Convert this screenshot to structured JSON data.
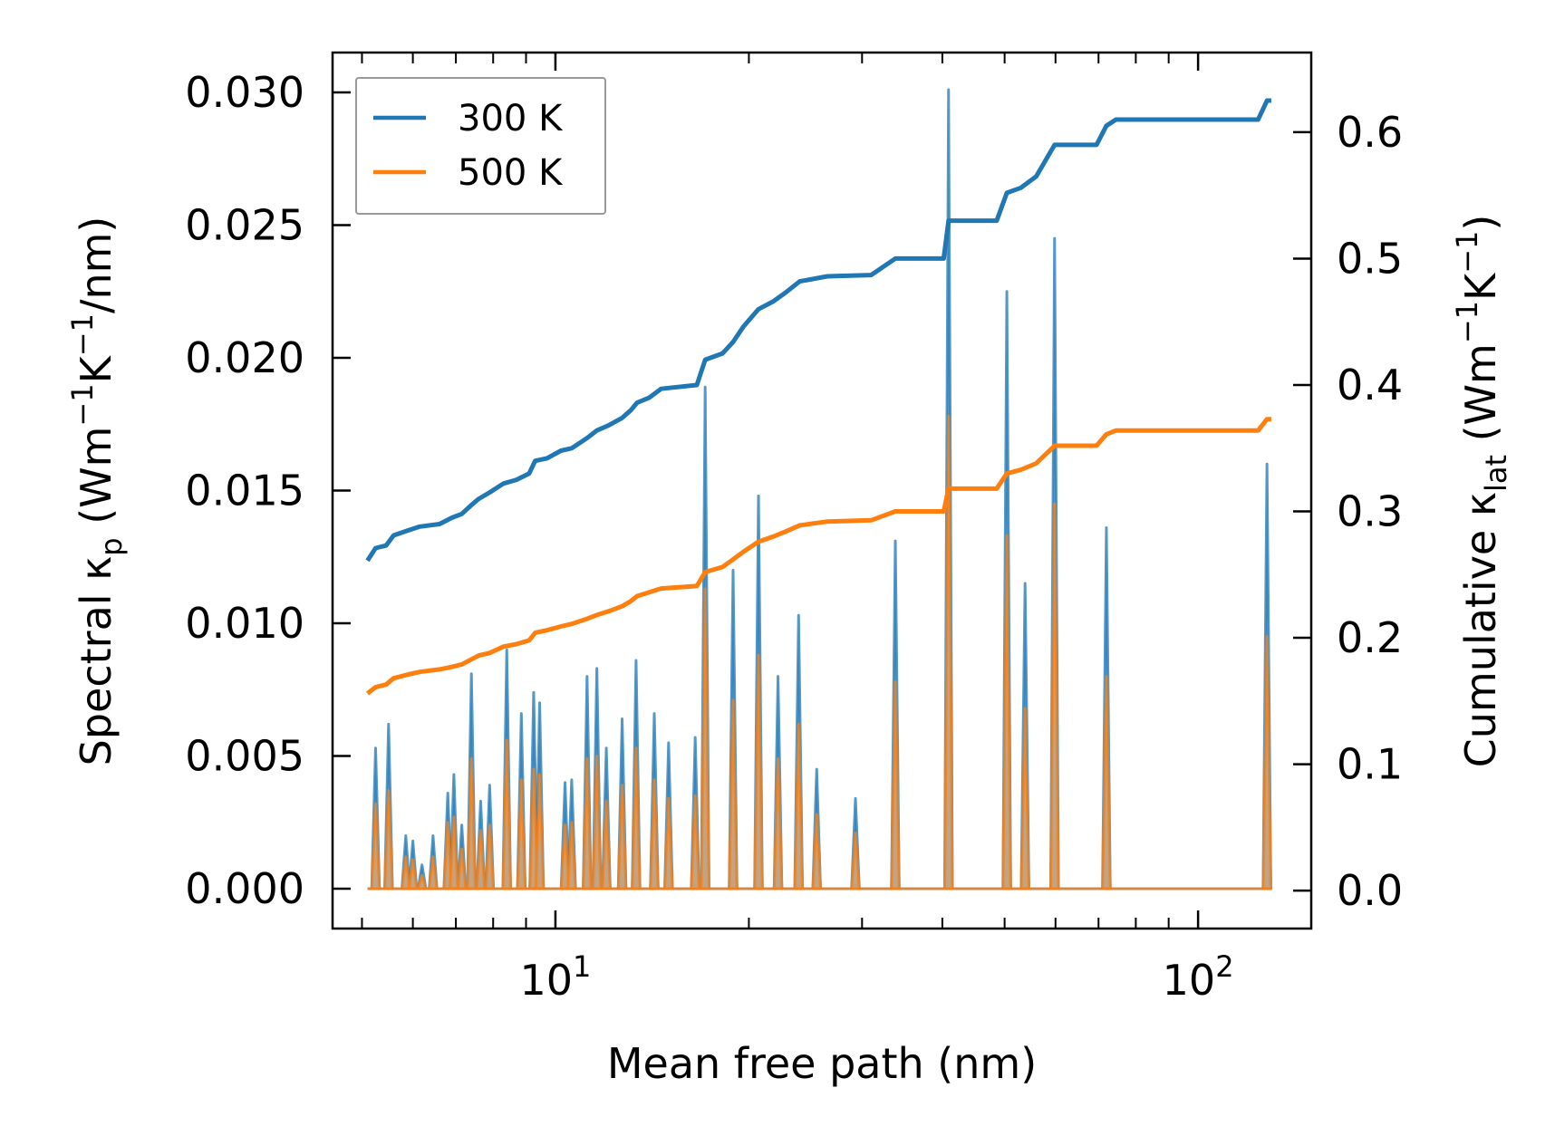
{
  "colors": {
    "series_300": "#1f77b4",
    "series_500": "#ff7f0e",
    "fill_500": "#c8a27c",
    "axis": "#000000",
    "legend_border": "#999999"
  },
  "chart_data": {
    "type": "line",
    "title": "",
    "xlabel": "Mean free path (nm)",
    "xscale": "log",
    "xlim": [
      4.5,
      150
    ],
    "x_tick_labels": [
      {
        "value": 10,
        "base": "10",
        "exp": "1"
      },
      {
        "value": 100,
        "base": "10",
        "exp": "2"
      }
    ],
    "y_left": {
      "label_parts": [
        "Spectral κ",
        "p",
        " (Wm",
        "−1",
        "K",
        "−1",
        "/nm)"
      ],
      "ylim": [
        -0.0015,
        0.0315
      ],
      "ticks": [
        "0.000",
        "0.005",
        "0.010",
        "0.015",
        "0.020",
        "0.025",
        "0.030"
      ]
    },
    "y_right": {
      "label_parts": [
        "Cumulative κ",
        "lat",
        " (Wm",
        "−1",
        "K",
        "−1",
        ")"
      ],
      "ylim": [
        -0.03,
        0.663
      ],
      "ticks": [
        "0.0",
        "0.1",
        "0.2",
        "0.3",
        "0.4",
        "0.5",
        "0.6"
      ]
    },
    "legend": {
      "position": "top-left",
      "entries": [
        {
          "label": "300 K",
          "series": "300 K"
        },
        {
          "label": "500 K",
          "series": "500 K"
        }
      ]
    },
    "spectral_series": [
      {
        "name": "300 K",
        "axis": "left",
        "peaks": [
          [
            5.25,
            0.0053
          ],
          [
            5.5,
            0.0062
          ],
          [
            5.85,
            0.002
          ],
          [
            6.0,
            0.0018
          ],
          [
            6.2,
            0.0009
          ],
          [
            6.45,
            0.002
          ],
          [
            6.8,
            0.0036
          ],
          [
            6.95,
            0.0043
          ],
          [
            7.15,
            0.0024
          ],
          [
            7.4,
            0.0081
          ],
          [
            7.65,
            0.0033
          ],
          [
            7.9,
            0.0039
          ],
          [
            8.4,
            0.009
          ],
          [
            8.85,
            0.0066
          ],
          [
            9.25,
            0.0074
          ],
          [
            9.45,
            0.007
          ],
          [
            10.35,
            0.004
          ],
          [
            10.6,
            0.0041
          ],
          [
            11.2,
            0.008
          ],
          [
            11.6,
            0.0083
          ],
          [
            12.0,
            0.0053
          ],
          [
            12.7,
            0.0064
          ],
          [
            13.35,
            0.0086
          ],
          [
            14.25,
            0.0066
          ],
          [
            15.0,
            0.0055
          ],
          [
            16.5,
            0.0057
          ],
          [
            17.1,
            0.0189
          ],
          [
            18.9,
            0.012
          ],
          [
            20.7,
            0.0148
          ],
          [
            22.2,
            0.008
          ],
          [
            23.9,
            0.0103
          ],
          [
            25.5,
            0.0045
          ],
          [
            29.3,
            0.0034
          ],
          [
            33.8,
            0.0131
          ],
          [
            40.9,
            0.0301
          ],
          [
            50.4,
            0.0225
          ],
          [
            53.8,
            0.0115
          ],
          [
            59.8,
            0.0245
          ],
          [
            72.0,
            0.0136
          ],
          [
            128.0,
            0.016
          ]
        ]
      },
      {
        "name": "500 K",
        "axis": "left",
        "peaks": [
          [
            5.25,
            0.0032
          ],
          [
            5.5,
            0.0037
          ],
          [
            5.85,
            0.0012
          ],
          [
            6.0,
            0.0011
          ],
          [
            6.2,
            0.0005
          ],
          [
            6.45,
            0.0012
          ],
          [
            6.8,
            0.0025
          ],
          [
            6.95,
            0.0027
          ],
          [
            7.15,
            0.0015
          ],
          [
            7.4,
            0.0049
          ],
          [
            7.65,
            0.0022
          ],
          [
            7.9,
            0.0024
          ],
          [
            8.4,
            0.0056
          ],
          [
            8.85,
            0.0041
          ],
          [
            9.25,
            0.0045
          ],
          [
            9.45,
            0.0043
          ],
          [
            10.35,
            0.0024
          ],
          [
            10.6,
            0.0025
          ],
          [
            11.2,
            0.0049
          ],
          [
            11.6,
            0.005
          ],
          [
            12.0,
            0.0033
          ],
          [
            12.7,
            0.0039
          ],
          [
            13.35,
            0.0053
          ],
          [
            14.25,
            0.0041
          ],
          [
            15.0,
            0.0034
          ],
          [
            16.5,
            0.0035
          ],
          [
            17.1,
            0.0113
          ],
          [
            18.9,
            0.0071
          ],
          [
            20.7,
            0.0088
          ],
          [
            22.2,
            0.0049
          ],
          [
            23.9,
            0.0062
          ],
          [
            25.5,
            0.0028
          ],
          [
            29.3,
            0.0021
          ],
          [
            33.8,
            0.0078
          ],
          [
            40.9,
            0.0178
          ],
          [
            50.4,
            0.0133
          ],
          [
            53.8,
            0.0068
          ],
          [
            59.8,
            0.0145
          ],
          [
            72.0,
            0.008
          ],
          [
            128.0,
            0.0095
          ]
        ]
      }
    ],
    "cumulative_series": [
      {
        "name": "300 K",
        "axis": "right",
        "points": [
          [
            5.1,
            0.261
          ],
          [
            5.25,
            0.271
          ],
          [
            5.45,
            0.273
          ],
          [
            5.6,
            0.281
          ],
          [
            5.9,
            0.285
          ],
          [
            6.15,
            0.288
          ],
          [
            6.6,
            0.29
          ],
          [
            6.9,
            0.295
          ],
          [
            7.15,
            0.298
          ],
          [
            7.4,
            0.305
          ],
          [
            7.6,
            0.31
          ],
          [
            7.9,
            0.315
          ],
          [
            8.3,
            0.322
          ],
          [
            8.7,
            0.325
          ],
          [
            9.1,
            0.33
          ],
          [
            9.3,
            0.34
          ],
          [
            9.7,
            0.342
          ],
          [
            10.2,
            0.348
          ],
          [
            10.6,
            0.35
          ],
          [
            11.2,
            0.358
          ],
          [
            11.6,
            0.364
          ],
          [
            12.1,
            0.368
          ],
          [
            12.7,
            0.374
          ],
          [
            13.1,
            0.38
          ],
          [
            13.4,
            0.386
          ],
          [
            14.0,
            0.39
          ],
          [
            14.6,
            0.397
          ],
          [
            16.6,
            0.4
          ],
          [
            17.1,
            0.42
          ],
          [
            18.2,
            0.425
          ],
          [
            18.9,
            0.434
          ],
          [
            19.6,
            0.446
          ],
          [
            20.7,
            0.46
          ],
          [
            21.8,
            0.466
          ],
          [
            22.8,
            0.473
          ],
          [
            24.0,
            0.482
          ],
          [
            26.5,
            0.486
          ],
          [
            31.0,
            0.487
          ],
          [
            33.8,
            0.5
          ],
          [
            40.2,
            0.5
          ],
          [
            40.9,
            0.53
          ],
          [
            48.6,
            0.53
          ],
          [
            50.4,
            0.552
          ],
          [
            53.0,
            0.556
          ],
          [
            56.0,
            0.565
          ],
          [
            59.8,
            0.59
          ],
          [
            69.5,
            0.59
          ],
          [
            72.0,
            0.605
          ],
          [
            74.5,
            0.61
          ],
          [
            124.0,
            0.61
          ],
          [
            128.0,
            0.625
          ],
          [
            130.0,
            0.625
          ]
        ]
      },
      {
        "name": "500 K",
        "axis": "right",
        "points": [
          [
            5.1,
            0.156
          ],
          [
            5.25,
            0.161
          ],
          [
            5.45,
            0.163
          ],
          [
            5.6,
            0.168
          ],
          [
            5.9,
            0.171
          ],
          [
            6.15,
            0.173
          ],
          [
            6.6,
            0.175
          ],
          [
            6.9,
            0.177
          ],
          [
            7.15,
            0.179
          ],
          [
            7.4,
            0.183
          ],
          [
            7.6,
            0.186
          ],
          [
            7.9,
            0.188
          ],
          [
            8.3,
            0.193
          ],
          [
            8.7,
            0.195
          ],
          [
            9.1,
            0.198
          ],
          [
            9.3,
            0.204
          ],
          [
            9.7,
            0.206
          ],
          [
            10.2,
            0.209
          ],
          [
            10.6,
            0.211
          ],
          [
            11.2,
            0.215
          ],
          [
            11.6,
            0.218
          ],
          [
            12.1,
            0.221
          ],
          [
            12.7,
            0.225
          ],
          [
            13.1,
            0.229
          ],
          [
            13.4,
            0.233
          ],
          [
            14.0,
            0.236
          ],
          [
            14.6,
            0.239
          ],
          [
            16.6,
            0.241
          ],
          [
            17.1,
            0.252
          ],
          [
            18.2,
            0.256
          ],
          [
            18.9,
            0.262
          ],
          [
            19.6,
            0.268
          ],
          [
            20.7,
            0.276
          ],
          [
            21.8,
            0.28
          ],
          [
            22.8,
            0.284
          ],
          [
            24.0,
            0.289
          ],
          [
            26.5,
            0.292
          ],
          [
            31.0,
            0.293
          ],
          [
            33.8,
            0.3
          ],
          [
            40.2,
            0.3
          ],
          [
            40.9,
            0.318
          ],
          [
            48.6,
            0.318
          ],
          [
            50.4,
            0.33
          ],
          [
            53.0,
            0.333
          ],
          [
            56.0,
            0.338
          ],
          [
            59.8,
            0.352
          ],
          [
            69.5,
            0.352
          ],
          [
            72.0,
            0.361
          ],
          [
            74.5,
            0.364
          ],
          [
            124.0,
            0.364
          ],
          [
            128.0,
            0.373
          ],
          [
            130.0,
            0.373
          ]
        ]
      }
    ]
  }
}
